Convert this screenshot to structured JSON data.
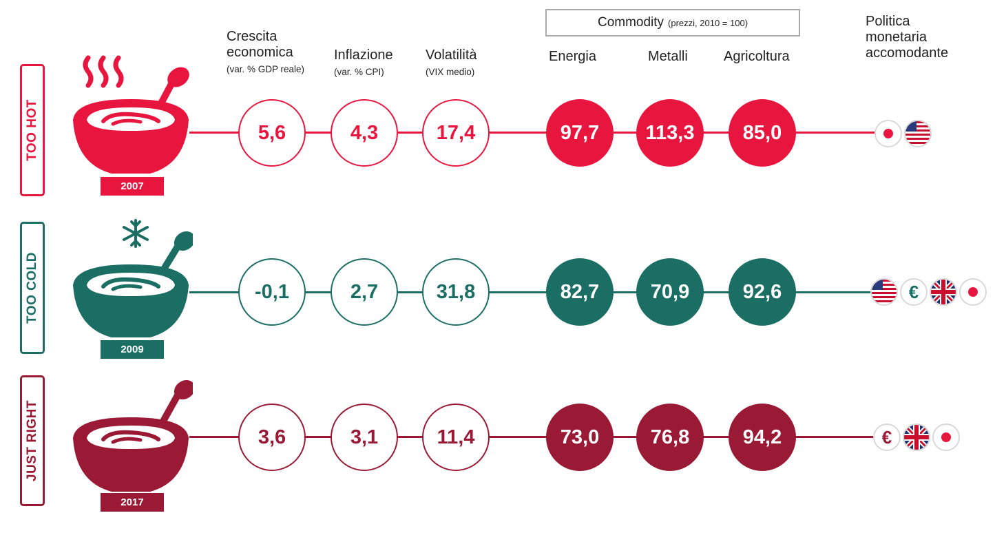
{
  "headers": {
    "growth": {
      "title_1": "Crescita",
      "title_2": "economica",
      "sub": "(var. % GDP reale)"
    },
    "inflation": {
      "title": "Inflazione",
      "sub": "(var. % CPI)"
    },
    "volatility": {
      "title": "Volatilità",
      "sub": "(VIX medio)"
    },
    "commodity": {
      "title": "Commodity",
      "sub": "(prezzi, 2010 = 100)"
    },
    "energy": "Energia",
    "metals": "Metalli",
    "agriculture": "Agricoltura",
    "policy": {
      "line_1": "Politica",
      "line_2": "monetaria",
      "line_3": "accomodante"
    }
  },
  "colors": {
    "hot": "#e8163f",
    "cold": "#1a6e63",
    "right": "#9a1a36"
  },
  "rows": {
    "hot": {
      "label": "TOO HOT",
      "year": "2007",
      "growth": "5,6",
      "inflation": "4,3",
      "volatility": "17,4",
      "energy": "97,7",
      "metals": "113,3",
      "agriculture": "85,0",
      "policy": [
        "japan-flag-icon",
        "us-flag-icon"
      ]
    },
    "cold": {
      "label": "TOO COLD",
      "year": "2009",
      "growth": "-0,1",
      "inflation": "2,7",
      "volatility": "31,8",
      "energy": "82,7",
      "metals": "70,9",
      "agriculture": "92,6",
      "policy": [
        "us-flag-icon",
        "euro-icon",
        "uk-flag-icon",
        "japan-flag-icon"
      ]
    },
    "right": {
      "label": "JUST RIGHT",
      "year": "2017",
      "growth": "3,6",
      "inflation": "3,1",
      "volatility": "11,4",
      "energy": "73,0",
      "metals": "76,8",
      "agriculture": "94,2",
      "policy": [
        "euro-icon",
        "uk-flag-icon",
        "japan-flag-icon"
      ]
    }
  },
  "symbols": {
    "euro": "€"
  }
}
